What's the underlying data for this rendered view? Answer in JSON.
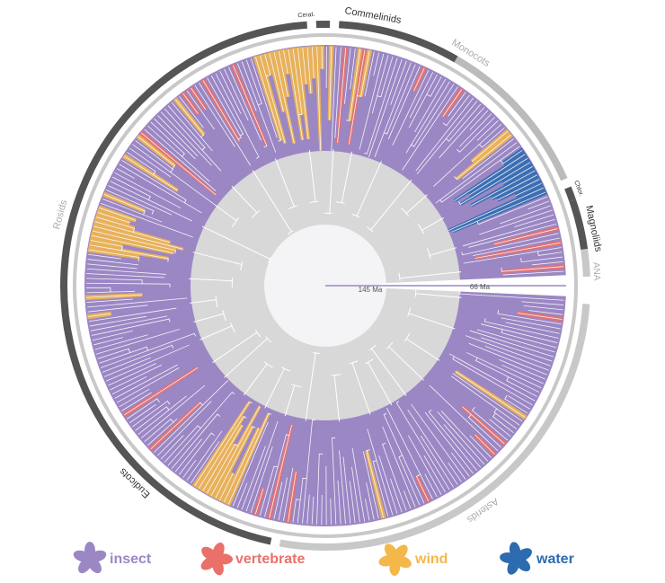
{
  "clades": [
    {
      "label": "Cerat."
    },
    {
      "label": "Commelinids"
    },
    {
      "label": "Monocots"
    },
    {
      "label": "Chlor."
    },
    {
      "label": "Magnoliids"
    },
    {
      "label": "ANA"
    },
    {
      "label": "Rosids"
    },
    {
      "label": "Eudicots"
    },
    {
      "label": "Asterids"
    }
  ],
  "time_labels": [
    "145 Ma",
    "66 Ma"
  ],
  "legend": [
    {
      "label": "insect",
      "color": "#9b87c4"
    },
    {
      "label": "vertebrate",
      "color": "#ea706a"
    },
    {
      "label": "wind",
      "color": "#f4b84a"
    },
    {
      "label": "water",
      "color": "#2d6bb0"
    }
  ]
}
